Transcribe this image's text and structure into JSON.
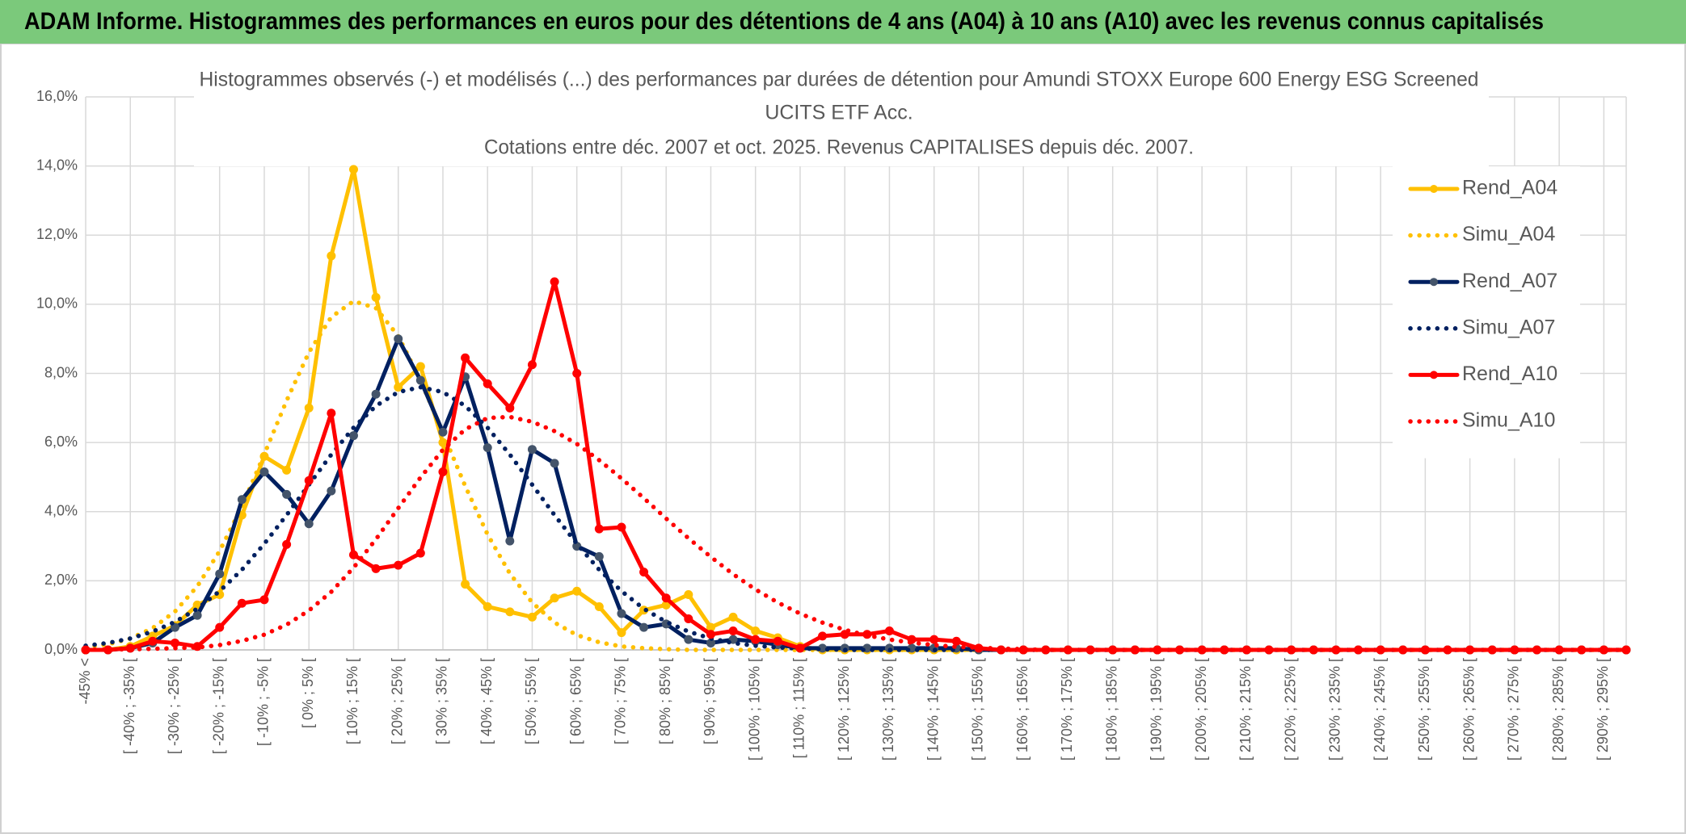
{
  "header": "ADAM Informe. Histogrammes des performances en euros pour des détentions de 4 ans (A04) à 10 ans (A10) avec les revenus connus capitalisés",
  "chart_data": {
    "type": "line",
    "title": [
      "Histogrammes observés (-) et modélisés (...) des performances par durées de détention pour Amundi STOXX Europe 600 Energy ESG Screened",
      "UCITS ETF Acc.",
      "Cotations entre déc. 2007 et oct. 2025. Revenus CAPITALISES depuis déc. 2007."
    ],
    "categories": [
      "-45% <",
      null,
      "[ -40% ; -35% [",
      null,
      "[ -30% ; -25% [",
      null,
      "[ -20% ; -15% [",
      null,
      "[ -10% ; -5% [",
      null,
      "[ 0% ; 5% [",
      null,
      "[ 10% ; 15% [",
      null,
      "[ 20% ; 25% [",
      null,
      "[ 30% ; 35% [",
      null,
      "[ 40% ; 45% [",
      null,
      "[ 50% ; 55% [",
      null,
      "[ 60% ; 65% [",
      null,
      "[ 70% ; 75% [",
      null,
      "[ 80% ; 85% [",
      null,
      "[ 90% ; 95% [",
      null,
      "[ 100% ; 105% [",
      null,
      "[ 110% ; 115% [",
      null,
      "[ 120% ; 125% [",
      null,
      "[ 130% ; 135% [",
      null,
      "[ 140% ; 145% [",
      null,
      "[ 150% ; 155% [",
      null,
      "[ 160% ; 165% [",
      null,
      "[ 170% ; 175% [",
      null,
      "[ 180% ; 185% [",
      null,
      "[ 190% ; 195% [",
      null,
      "[ 200% ; 205% [",
      null,
      "[ 210% ; 215% [",
      null,
      "[ 220% ; 225% [",
      null,
      "[ 230% ; 235% [",
      null,
      "[ 240% ; 245% [",
      null,
      "[ 250% ; 255% [",
      null,
      "[ 260% ; 265% [",
      null,
      "[ 270% ; 275% [",
      null,
      "[ 280% ; 285% [",
      null,
      "[ 290% ; 295% [",
      null
    ],
    "series": [
      {
        "name": "Rend_A04",
        "color": "#FFC000",
        "style": "solid",
        "markers": true,
        "marker_color": "#FFC000",
        "values": [
          0,
          0,
          0.1,
          0.4,
          0.7,
          1.3,
          1.6,
          3.9,
          5.6,
          5.2,
          7.0,
          11.4,
          13.9,
          10.2,
          7.6,
          8.2,
          6.0,
          1.9,
          1.25,
          1.1,
          0.95,
          1.5,
          1.7,
          1.25,
          0.5,
          1.15,
          1.3,
          1.6,
          0.65,
          0.95,
          0.55,
          0.35,
          0.1,
          0,
          0,
          0,
          0,
          0,
          0,
          0,
          0,
          0,
          0,
          0,
          0,
          0,
          0,
          0,
          0,
          0,
          0,
          0,
          0,
          0,
          0,
          0,
          0,
          0,
          0,
          0,
          0,
          0,
          0,
          0,
          0,
          0,
          0,
          0,
          0,
          0
        ]
      },
      {
        "name": "Simu_A04",
        "color": "#FFC000",
        "style": "dotted",
        "markers": false,
        "values": [
          0.08,
          0.16,
          0.33,
          0.63,
          1.11,
          1.84,
          2.86,
          4.15,
          5.66,
          7.21,
          8.61,
          9.63,
          10.09,
          9.89,
          9.08,
          7.8,
          6.28,
          4.74,
          3.34,
          2.21,
          1.37,
          0.79,
          0.43,
          0.22,
          0.1,
          0.05,
          0.02,
          0,
          0,
          0,
          0,
          0,
          0,
          0,
          0,
          0,
          0,
          0,
          0,
          0,
          0,
          0,
          0,
          0,
          0,
          0,
          0,
          0,
          0,
          0,
          0,
          0,
          0,
          0,
          0,
          0,
          0,
          0,
          0,
          0,
          0,
          0,
          0,
          0,
          0,
          0,
          0,
          0,
          0,
          0
        ]
      },
      {
        "name": "Rend_A07",
        "color": "#002060",
        "style": "solid",
        "markers": true,
        "marker_color": "#44546A",
        "values": [
          0,
          0,
          0.05,
          0.2,
          0.65,
          1.0,
          2.2,
          4.35,
          5.15,
          4.5,
          3.65,
          4.6,
          6.2,
          7.4,
          9.0,
          7.8,
          6.3,
          7.9,
          5.85,
          3.15,
          5.8,
          5.4,
          3.0,
          2.7,
          1.05,
          0.65,
          0.75,
          0.3,
          0.2,
          0.3,
          0.25,
          0.15,
          0.05,
          0.05,
          0.05,
          0.05,
          0.05,
          0.05,
          0.05,
          0.05,
          0,
          0,
          0,
          0,
          0,
          0,
          0,
          0,
          0,
          0,
          0,
          0,
          0,
          0,
          0,
          0,
          0,
          0,
          0,
          0,
          0,
          0,
          0,
          0,
          0,
          0,
          0,
          0,
          0,
          0
        ]
      },
      {
        "name": "Simu_A07",
        "color": "#002060",
        "style": "dotted",
        "markers": false,
        "values": [
          0.12,
          0.2,
          0.33,
          0.53,
          0.81,
          1.19,
          1.7,
          2.32,
          3.07,
          3.9,
          4.78,
          5.65,
          6.43,
          7.06,
          7.46,
          7.6,
          7.46,
          7.06,
          6.43,
          5.65,
          4.78,
          3.9,
          3.07,
          2.32,
          1.7,
          1.19,
          0.81,
          0.53,
          0.33,
          0.2,
          0.12,
          0.07,
          0.04,
          0.02,
          0,
          0,
          0,
          0,
          0,
          0,
          0,
          0,
          0,
          0,
          0,
          0,
          0,
          0,
          0,
          0,
          0,
          0,
          0,
          0,
          0,
          0,
          0,
          0,
          0,
          0,
          0,
          0,
          0,
          0,
          0,
          0,
          0,
          0,
          0,
          0
        ]
      },
      {
        "name": "Rend_A10",
        "color": "#FF0000",
        "style": "solid",
        "markers": true,
        "marker_color": "#FF0000",
        "values": [
          0,
          0,
          0.05,
          0.25,
          0.2,
          0.1,
          0.65,
          1.35,
          1.45,
          3.05,
          4.9,
          6.85,
          2.75,
          2.35,
          2.45,
          2.8,
          5.15,
          8.45,
          7.7,
          7.0,
          8.25,
          10.65,
          8.0,
          3.5,
          3.55,
          2.25,
          1.5,
          0.9,
          0.45,
          0.55,
          0.3,
          0.25,
          0.05,
          0.4,
          0.45,
          0.45,
          0.55,
          0.3,
          0.3,
          0.25,
          0.05,
          0,
          0,
          0,
          0,
          0,
          0,
          0,
          0,
          0,
          0,
          0,
          0,
          0,
          0,
          0,
          0,
          0,
          0,
          0,
          0,
          0,
          0,
          0,
          0,
          0,
          0,
          0,
          0,
          0
        ]
      },
      {
        "name": "Simu_A10",
        "color": "#FF0000",
        "style": "dotted",
        "markers": false,
        "values": [
          0.01,
          0.01,
          0.02,
          0.03,
          0.05,
          0.07,
          0.14,
          0.26,
          0.44,
          0.73,
          1.14,
          1.68,
          2.38,
          3.2,
          4.1,
          4.99,
          5.79,
          6.38,
          6.71,
          6.74,
          6.6,
          6.33,
          5.96,
          5.49,
          4.96,
          4.39,
          3.8,
          3.23,
          2.69,
          2.19,
          1.75,
          1.37,
          1.05,
          0.79,
          0.58,
          0.42,
          0.3,
          0.21,
          0.14,
          0.09,
          0.06,
          0.04,
          0.02,
          0,
          0,
          0,
          0,
          0,
          0,
          0,
          0,
          0,
          0,
          0,
          0,
          0,
          0,
          0,
          0,
          0,
          0,
          0,
          0,
          0,
          0,
          0,
          0,
          0,
          0,
          0
        ]
      }
    ],
    "ylim": [
      0,
      16
    ],
    "yticks": [
      {
        "value": 0,
        "label": "0,0%"
      },
      {
        "value": 2,
        "label": "2,0%"
      },
      {
        "value": 4,
        "label": "4,0%"
      },
      {
        "value": 6,
        "label": "6,0%"
      },
      {
        "value": 8,
        "label": "8,0%"
      },
      {
        "value": 10,
        "label": "10,0%"
      },
      {
        "value": 12,
        "label": "12,0%"
      },
      {
        "value": 14,
        "label": "14,0%"
      },
      {
        "value": 16,
        "label": "16,0%"
      }
    ],
    "grid": true,
    "legend": "upper right"
  }
}
